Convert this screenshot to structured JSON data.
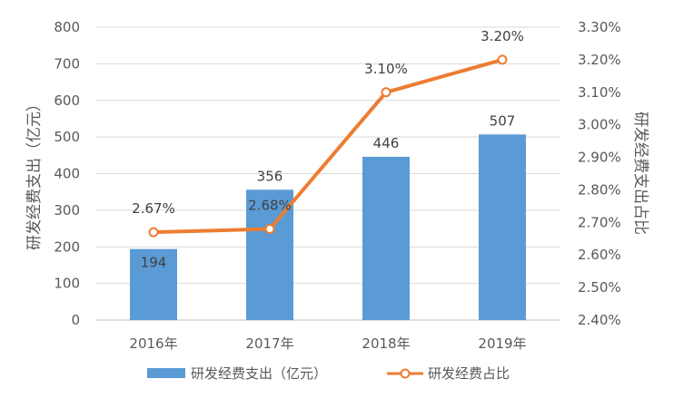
{
  "chart_data": {
    "type": "bar",
    "categories": [
      "2016年",
      "2017年",
      "2018年",
      "2019年"
    ],
    "series": [
      {
        "name": "研发经费支出（亿元）",
        "type": "bar",
        "axis": "left",
        "values": [
          194,
          356,
          446,
          507
        ],
        "labels": [
          "194",
          "356",
          "446",
          "507"
        ],
        "color": "#5B9BD5"
      },
      {
        "name": "研发经费占比",
        "type": "line",
        "axis": "right",
        "values": [
          2.67,
          2.68,
          3.1,
          3.2
        ],
        "labels": [
          "2.67%",
          "2.68%",
          "3.10%",
          "3.20%"
        ],
        "color": "#ED7D31"
      }
    ],
    "ylabel": "研发经费支出（亿元）",
    "y2label": "研发经费支出占比",
    "ylim": [
      0,
      800
    ],
    "y2lim": [
      2.4,
      3.3
    ],
    "yticks": [
      "0",
      "100",
      "200",
      "300",
      "400",
      "500",
      "600",
      "700",
      "800"
    ],
    "y2ticks": [
      "2.40%",
      "2.50%",
      "2.60%",
      "2.70%",
      "2.80%",
      "2.90%",
      "3.00%",
      "3.10%",
      "3.20%",
      "3.30%"
    ],
    "grid": true,
    "legend": "bottom"
  }
}
